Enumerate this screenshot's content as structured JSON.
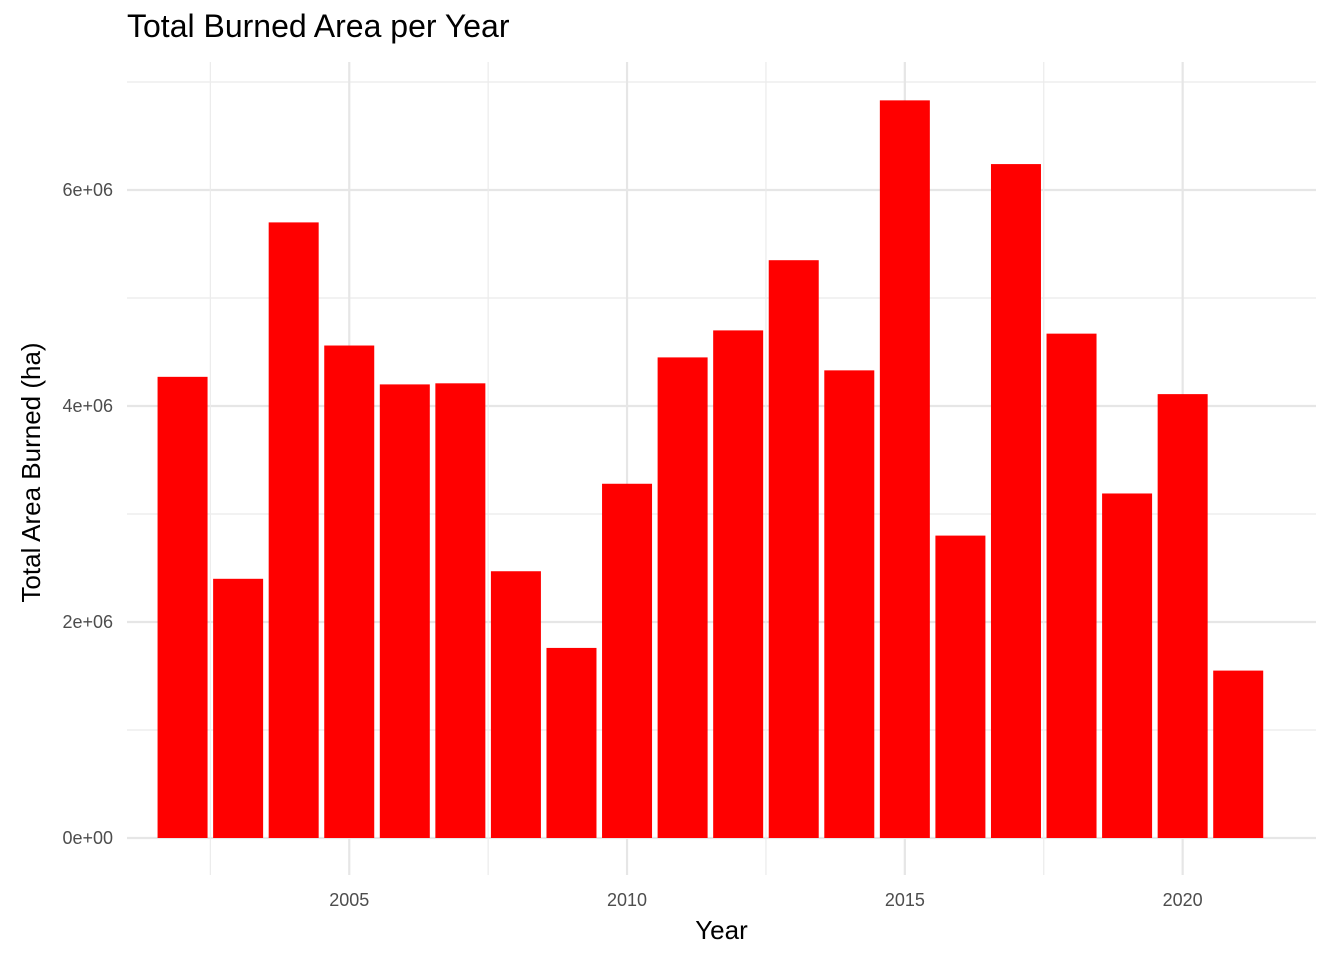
{
  "chart_data": {
    "type": "bar",
    "title": "Total Burned Area per Year",
    "xlabel": "Year",
    "ylabel": "Total Area Burned (ha)",
    "categories": [
      2002,
      2003,
      2004,
      2005,
      2006,
      2007,
      2008,
      2009,
      2010,
      2011,
      2012,
      2013,
      2014,
      2015,
      2016,
      2017,
      2018,
      2019,
      2020,
      2021
    ],
    "values": [
      4270000,
      2400000,
      5700000,
      4560000,
      4200000,
      4210000,
      2470000,
      1760000,
      3280000,
      4450000,
      4700000,
      5350000,
      4330000,
      6830000,
      2800000,
      6240000,
      4670000,
      3190000,
      4110000,
      1550000
    ],
    "xlim": [
      2001.0,
      2022.4
    ],
    "ylim": [
      0,
      7000000
    ],
    "x_ticks": [
      2005,
      2010,
      2015,
      2020
    ],
    "x_tick_labels": [
      "2005",
      "2010",
      "2015",
      "2020"
    ],
    "y_ticks": [
      0,
      2000000,
      4000000,
      6000000
    ],
    "y_tick_labels": [
      "0e+00",
      "2e+06",
      "4e+06",
      "6e+06"
    ],
    "bar_color": "#ff0000",
    "grid": true,
    "legend": "none"
  }
}
